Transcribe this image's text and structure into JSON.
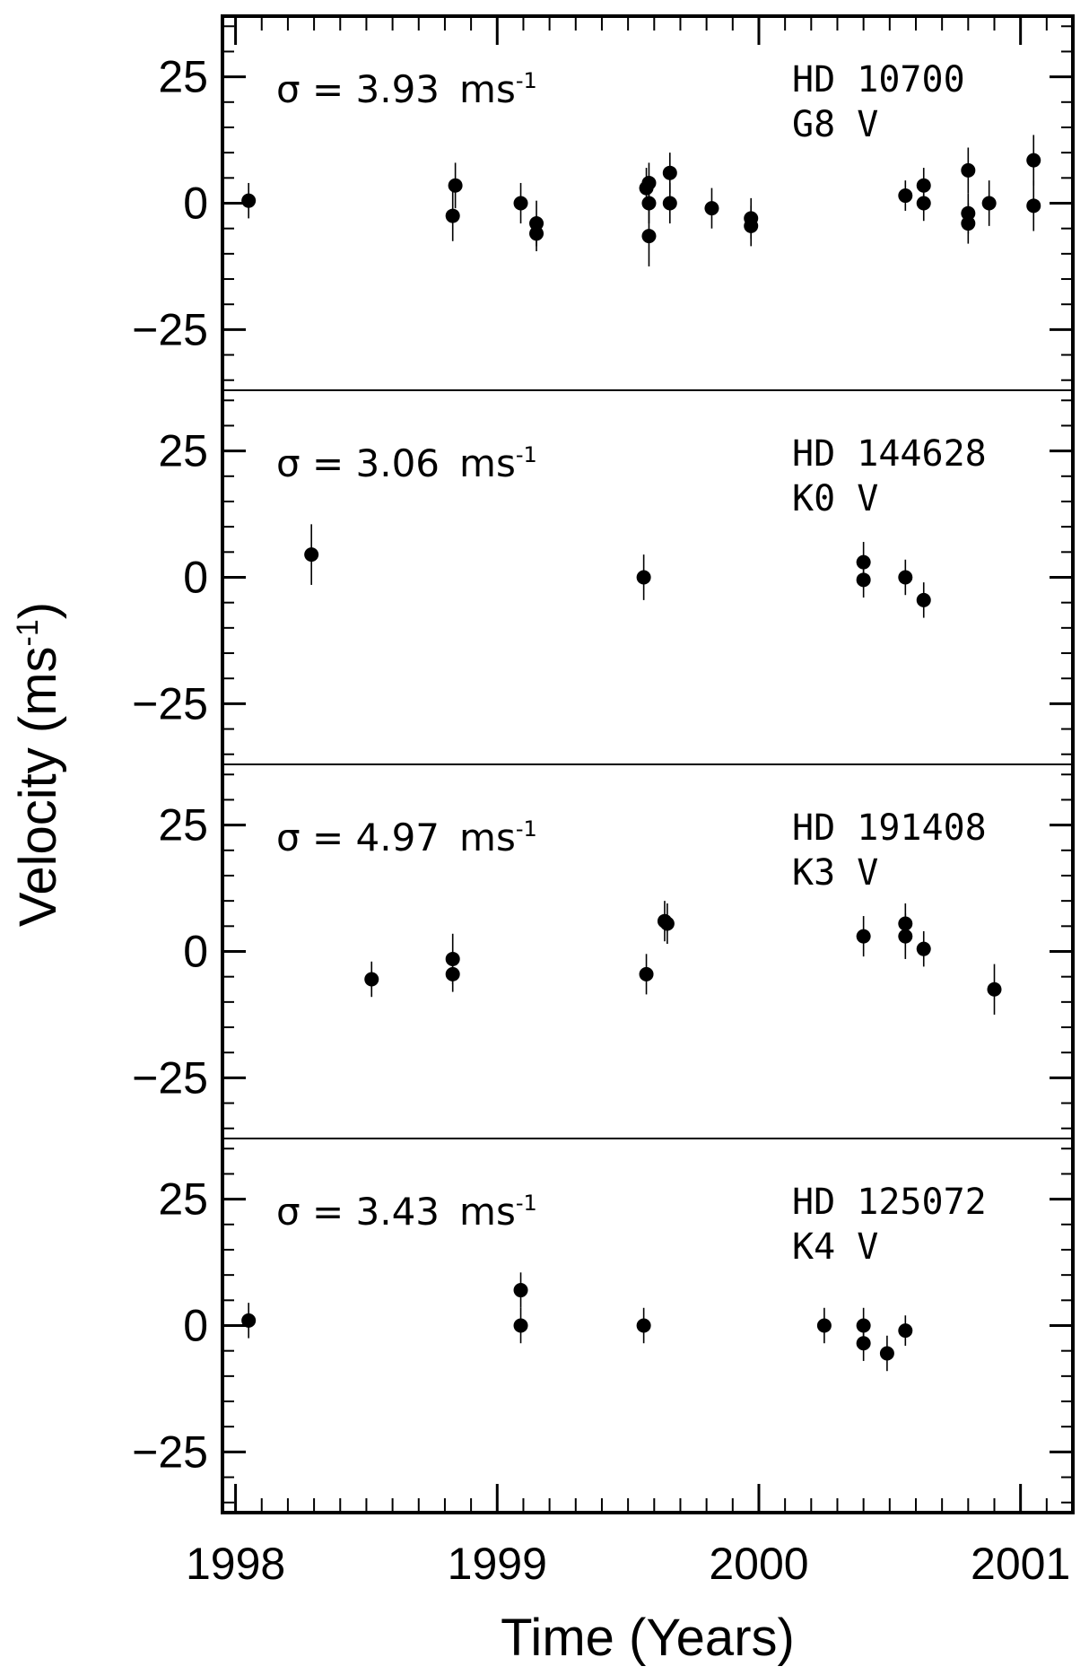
{
  "chart_data": {
    "type": "scatter",
    "xlabel": "Time (Years)",
    "ylabel_main": "Velocity (ms",
    "ylabel_sup": "-1",
    "ylabel_close": ")",
    "xlim": [
      1997.95,
      2001.2
    ],
    "x_ticks": [
      {
        "value": 1998,
        "label": "1998"
      },
      {
        "value": 1999,
        "label": "1999"
      },
      {
        "value": 2000,
        "label": "2000"
      },
      {
        "value": 2001,
        "label": "2001"
      }
    ],
    "x_minor_step": 0.1,
    "y_ticks": [
      {
        "value": 25,
        "label": "25"
      },
      {
        "value": 0,
        "label": "0"
      },
      {
        "value": -25,
        "label": "−25"
      }
    ],
    "panels": [
      {
        "star": "HD 10700",
        "spectral_type": "G8 V",
        "sigma_prefix": "σ = ",
        "sigma_value": "3.93",
        "sigma_unit": "ms",
        "sigma_sup": "-1",
        "ylim": [
          -37,
          37
        ],
        "points": [
          {
            "x": 1998.05,
            "y": 0.5,
            "err": 3.5
          },
          {
            "x": 1998.83,
            "y": -2.5,
            "err": 5.0
          },
          {
            "x": 1998.84,
            "y": 3.5,
            "err": 4.5
          },
          {
            "x": 1999.09,
            "y": 0.0,
            "err": 4.0
          },
          {
            "x": 1999.15,
            "y": -4.0,
            "err": 4.5
          },
          {
            "x": 1999.15,
            "y": -6.0,
            "err": 3.5
          },
          {
            "x": 1999.57,
            "y": 3.0,
            "err": 4.0
          },
          {
            "x": 1999.58,
            "y": 4.0,
            "err": 4.0
          },
          {
            "x": 1999.58,
            "y": 0.0,
            "err": 4.0
          },
          {
            "x": 1999.58,
            "y": -6.5,
            "err": 6.0
          },
          {
            "x": 1999.66,
            "y": 6.0,
            "err": 4.0
          },
          {
            "x": 1999.66,
            "y": 0.0,
            "err": 4.0
          },
          {
            "x": 1999.82,
            "y": -1.0,
            "err": 4.0
          },
          {
            "x": 1999.97,
            "y": -3.0,
            "err": 4.0
          },
          {
            "x": 1999.97,
            "y": -4.5,
            "err": 4.0
          },
          {
            "x": 2000.56,
            "y": 1.5,
            "err": 3.0
          },
          {
            "x": 2000.63,
            "y": 3.5,
            "err": 3.5
          },
          {
            "x": 2000.63,
            "y": 0.0,
            "err": 3.5
          },
          {
            "x": 2000.8,
            "y": 6.5,
            "err": 4.5
          },
          {
            "x": 2000.8,
            "y": -2.0,
            "err": 4.0
          },
          {
            "x": 2000.8,
            "y": -4.0,
            "err": 4.0
          },
          {
            "x": 2000.88,
            "y": 0.0,
            "err": 4.5
          },
          {
            "x": 2001.05,
            "y": 8.5,
            "err": 5.0
          },
          {
            "x": 2001.05,
            "y": -0.5,
            "err": 5.0
          }
        ]
      },
      {
        "star": "HD 144628",
        "spectral_type": "K0 V",
        "sigma_prefix": "σ = ",
        "sigma_value": "3.06",
        "sigma_unit": "ms",
        "sigma_sup": "-1",
        "ylim": [
          -37,
          37
        ],
        "points": [
          {
            "x": 1998.29,
            "y": 4.5,
            "err": 6.0
          },
          {
            "x": 1999.56,
            "y": 0.0,
            "err": 4.5
          },
          {
            "x": 2000.4,
            "y": 3.0,
            "err": 4.0
          },
          {
            "x": 2000.4,
            "y": -0.5,
            "err": 3.5
          },
          {
            "x": 2000.56,
            "y": 0.0,
            "err": 3.5
          },
          {
            "x": 2000.63,
            "y": -4.5,
            "err": 3.5
          }
        ]
      },
      {
        "star": "HD 191408",
        "spectral_type": "K3 V",
        "sigma_prefix": "σ = ",
        "sigma_value": "4.97",
        "sigma_unit": "ms",
        "sigma_sup": "-1",
        "ylim": [
          -37,
          37
        ],
        "points": [
          {
            "x": 1998.52,
            "y": -5.5,
            "err": 3.5
          },
          {
            "x": 1998.83,
            "y": -1.5,
            "err": 5.0
          },
          {
            "x": 1998.83,
            "y": -4.5,
            "err": 3.5
          },
          {
            "x": 1999.57,
            "y": -4.5,
            "err": 4.0
          },
          {
            "x": 1999.64,
            "y": 6.0,
            "err": 4.0
          },
          {
            "x": 1999.65,
            "y": 5.5,
            "err": 4.0
          },
          {
            "x": 2000.4,
            "y": 3.0,
            "err": 4.0
          },
          {
            "x": 2000.56,
            "y": 5.5,
            "err": 4.0
          },
          {
            "x": 2000.56,
            "y": 3.0,
            "err": 4.5
          },
          {
            "x": 2000.63,
            "y": 0.5,
            "err": 3.5
          },
          {
            "x": 2000.9,
            "y": -7.5,
            "err": 5.0
          }
        ]
      },
      {
        "star": "HD 125072",
        "spectral_type": "K4 V",
        "sigma_prefix": "σ = ",
        "sigma_value": "3.43",
        "sigma_unit": "ms",
        "sigma_sup": "-1",
        "ylim": [
          -37,
          37
        ],
        "points": [
          {
            "x": 1998.05,
            "y": 1.0,
            "err": 3.5
          },
          {
            "x": 1999.09,
            "y": 7.0,
            "err": 3.5
          },
          {
            "x": 1999.09,
            "y": 0.0,
            "err": 3.5
          },
          {
            "x": 1999.56,
            "y": 0.0,
            "err": 3.5
          },
          {
            "x": 2000.25,
            "y": 0.0,
            "err": 3.5
          },
          {
            "x": 2000.4,
            "y": 0.0,
            "err": 3.5
          },
          {
            "x": 2000.4,
            "y": -3.5,
            "err": 3.5
          },
          {
            "x": 2000.49,
            "y": -5.5,
            "err": 3.5
          },
          {
            "x": 2000.56,
            "y": -1.0,
            "err": 3.0
          }
        ]
      }
    ]
  }
}
